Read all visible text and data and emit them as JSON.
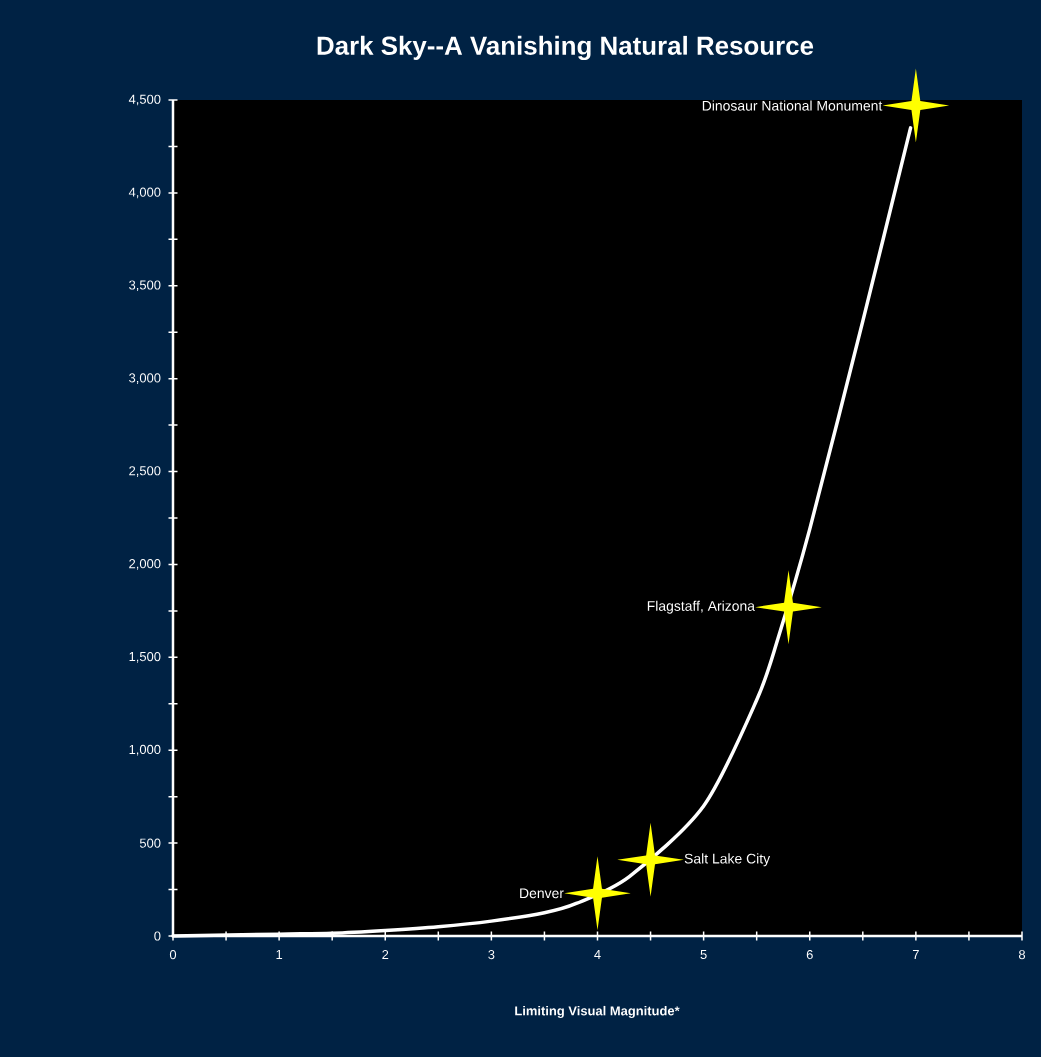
{
  "chart_data": {
    "type": "line",
    "title": "Dark Sky--A Vanishing Natural Resource",
    "xlabel": "Limiting Visual Magnitude*",
    "xlim": [
      0,
      8
    ],
    "ylim": [
      0,
      4500
    ],
    "xticks": [
      0,
      {
        "value": 0.5,
        "label": null
      },
      1,
      {
        "value": 1.5,
        "label": null
      },
      2,
      {
        "value": 2.5,
        "label": null
      },
      3,
      {
        "value": 3.5,
        "label": null
      },
      4,
      {
        "value": 4.5,
        "label": null
      },
      5,
      {
        "value": 5.5,
        "label": null
      },
      6,
      {
        "value": 6.5,
        "label": null
      },
      7,
      {
        "value": 7.5,
        "label": null
      },
      8
    ],
    "yticks": [
      {
        "value": 0,
        "label": "0"
      },
      {
        "value": 250,
        "label": null
      },
      {
        "value": 500,
        "label": "500"
      },
      {
        "value": 750,
        "label": null
      },
      {
        "value": 1000,
        "label": "1,000"
      },
      {
        "value": 1250,
        "label": null
      },
      {
        "value": 1500,
        "label": "1,500"
      },
      {
        "value": 1750,
        "label": null
      },
      {
        "value": 2000,
        "label": "2,000"
      },
      {
        "value": 2250,
        "label": null
      },
      {
        "value": 2500,
        "label": "2,500"
      },
      {
        "value": 2750,
        "label": null
      },
      {
        "value": 3000,
        "label": "3,000"
      },
      {
        "value": 3250,
        "label": null
      },
      {
        "value": 3500,
        "label": "3,500"
      },
      {
        "value": 3750,
        "label": null
      },
      {
        "value": 4000,
        "label": "4,000"
      },
      {
        "value": 4250,
        "label": null
      },
      {
        "value": 4500,
        "label": "4,500"
      }
    ],
    "series": [
      {
        "color": "#ffffff",
        "marker": "none",
        "x": [
          0,
          1,
          1.5,
          2,
          2.5,
          3,
          3.5,
          3.8,
          4.3,
          5,
          5.5,
          5.7,
          6,
          6.5,
          6.95
        ],
        "values": [
          0,
          10,
          15,
          30,
          50,
          80,
          125,
          175,
          320,
          700,
          1270,
          1600,
          2190,
          3310,
          4350
        ]
      },
      {
        "type": "scatter",
        "color": "#ffff00",
        "marker": "star",
        "x": [
          4,
          4.5,
          5.8,
          7
        ],
        "values": [
          230,
          410,
          1770,
          4470
        ]
      }
    ],
    "annotations": [
      {
        "text": "Denver",
        "x": 4,
        "y": 230
      },
      {
        "text": "Salt Lake City",
        "x": 4.5,
        "y": 410
      },
      {
        "text": "Flagstaff, Arizona",
        "x": 5.8,
        "y": 1770
      },
      {
        "text": "Dinosaur National Monument",
        "x": 7,
        "y": 4470
      }
    ]
  }
}
